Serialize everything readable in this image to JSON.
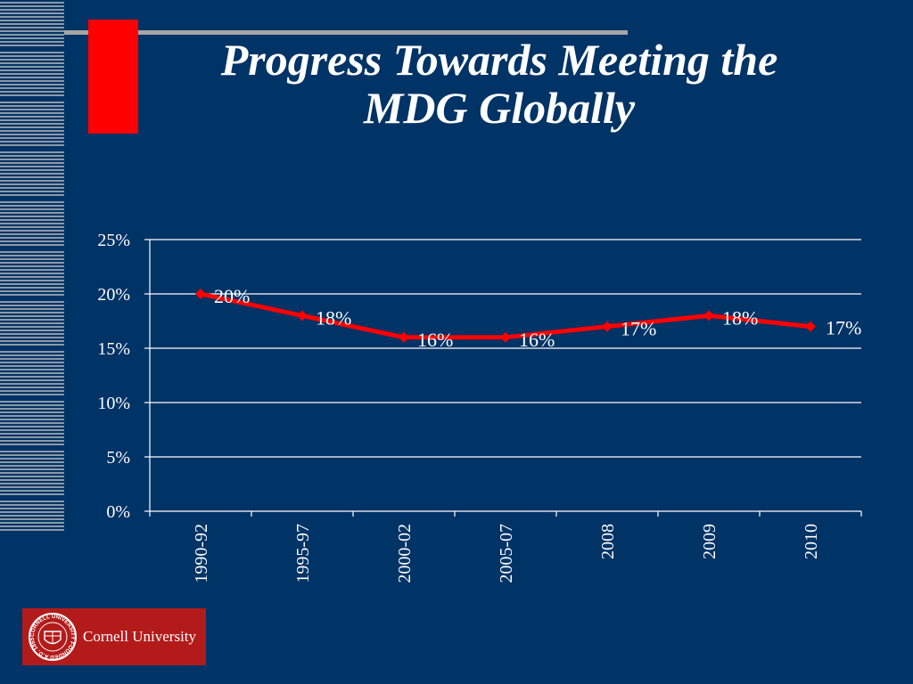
{
  "slide": {
    "title_line1": "Progress Towards Meeting the",
    "title_line2": "MDG Globally",
    "background_color": "#003366",
    "accent_red": "#ff0000"
  },
  "logo": {
    "name": "Cornell University",
    "seal_text": "CORNELL UNIVERSITY FOUNDED A.D. 1865",
    "background_color": "#b31b1b"
  },
  "chart_data": {
    "type": "line",
    "title": "",
    "xlabel": "",
    "ylabel": "",
    "categories": [
      "1990-92",
      "1995-97",
      "2000-02",
      "2005-07",
      "2008",
      "2009",
      "2010"
    ],
    "series": [
      {
        "values": [
          20,
          18,
          16,
          16,
          17,
          18,
          17
        ],
        "labels": [
          "20%",
          "18%",
          "16%",
          "16%",
          "17%",
          "18%",
          "17%"
        ],
        "color": "#ff0000",
        "marker": "diamond"
      }
    ],
    "ylim": [
      0,
      25
    ],
    "yticks": [
      0,
      5,
      10,
      15,
      20,
      25
    ],
    "ytick_labels": [
      "0%",
      "5%",
      "10%",
      "15%",
      "20%",
      "25%"
    ],
    "grid": true,
    "legend": "none"
  }
}
